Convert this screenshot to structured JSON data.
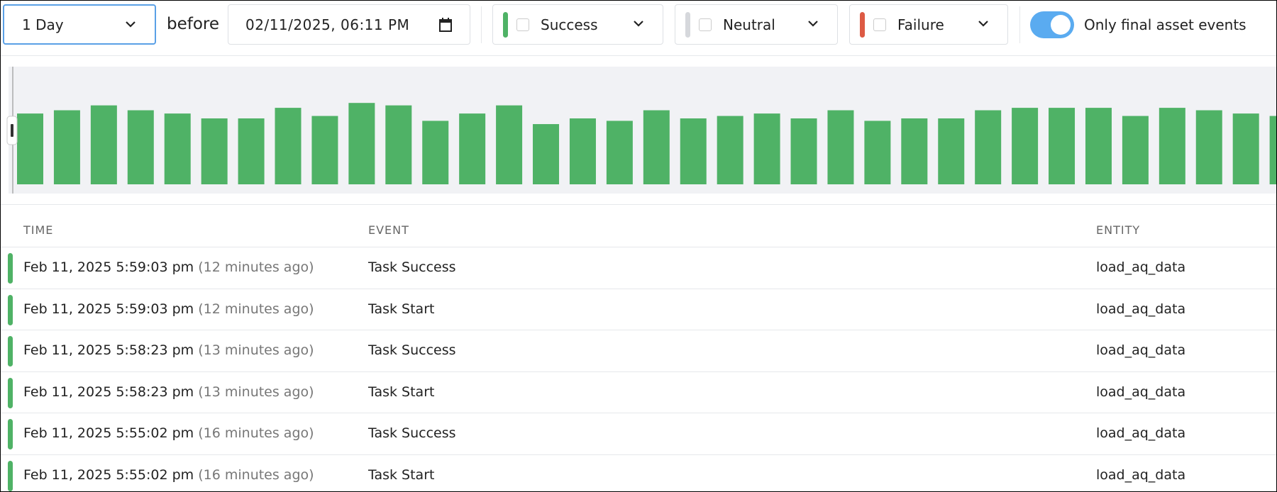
{
  "toolbar": {
    "range": "1 Day",
    "before": "before",
    "date": "02/11/2025, 06:11 PM",
    "filters": [
      {
        "label": "Success"
      },
      {
        "label": "Neutral"
      },
      {
        "label": "Failure"
      }
    ],
    "toggle": "Only final asset events"
  },
  "timeline": {
    "values": [
      87,
      91,
      97,
      91,
      87,
      81,
      81,
      94,
      84,
      100,
      97,
      78,
      87,
      97,
      74,
      81,
      78,
      91,
      81,
      84,
      87,
      81,
      91,
      78,
      81,
      81,
      91,
      94,
      94,
      94,
      84,
      94,
      91,
      87,
      84
    ]
  },
  "table": {
    "columns": [
      "TIME",
      "EVENT",
      "ENTITY"
    ],
    "rows": [
      {
        "time": "Feb 11, 2025 5:59:03 pm",
        "ago": "(12 minutes ago)",
        "event": "Task Success",
        "entity": "load_aq_data"
      },
      {
        "time": "Feb 11, 2025 5:59:03 pm",
        "ago": "(12 minutes ago)",
        "event": "Task Start",
        "entity": "load_aq_data"
      },
      {
        "time": "Feb 11, 2025 5:58:23 pm",
        "ago": "(13 minutes ago)",
        "event": "Task Success",
        "entity": "load_aq_data"
      },
      {
        "time": "Feb 11, 2025 5:58:23 pm",
        "ago": "(13 minutes ago)",
        "event": "Task Start",
        "entity": "load_aq_data"
      },
      {
        "time": "Feb 11, 2025 5:55:02 pm",
        "ago": "(16 minutes ago)",
        "event": "Task Success",
        "entity": "load_aq_data"
      },
      {
        "time": "Feb 11, 2025 5:55:02 pm",
        "ago": "(16 minutes ago)",
        "event": "Task Start",
        "entity": "load_aq_data"
      }
    ]
  }
}
